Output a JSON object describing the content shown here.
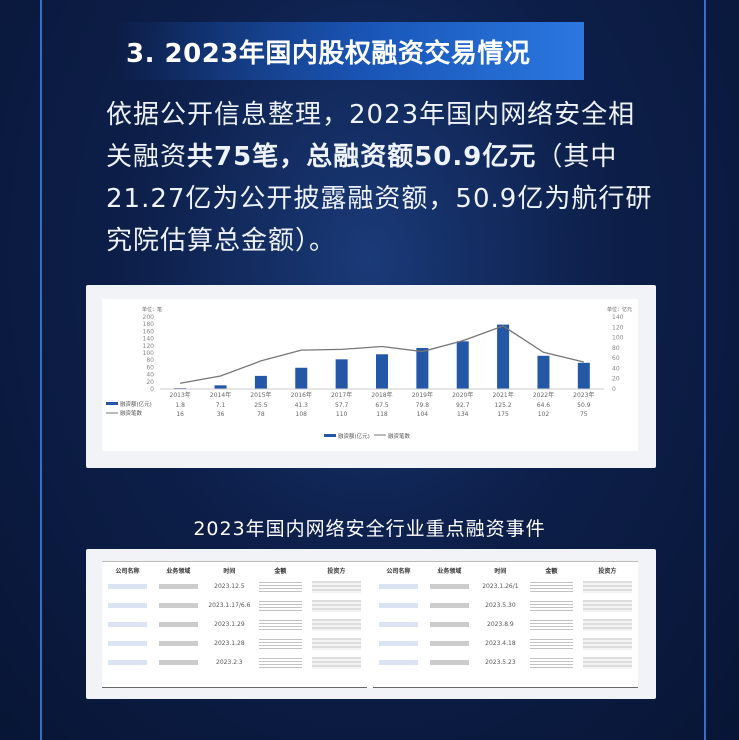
{
  "section_title": "3. 2023年国内股权融资交易情况",
  "paragraph": {
    "p1": "依据公开信息整理，2023年国内网络安全相关融资",
    "b1": "共75笔，总融资额50.9亿元",
    "p2": "（其中21.27亿为公开披露融资额，50.9亿为航行研究院估算总金额）。"
  },
  "chart_data": {
    "type": "bar",
    "categories": [
      "2013年",
      "2014年",
      "2015年",
      "2016年",
      "2017年",
      "2018年",
      "2019年",
      "2020年",
      "2021年",
      "2022年",
      "2023年"
    ],
    "series": [
      {
        "name": "融资额(亿元)",
        "type": "bar",
        "axis": "right",
        "values": [
          1.8,
          7.1,
          25.5,
          41.3,
          57.7,
          67.5,
          79.8,
          92.7,
          125.2,
          64.6,
          50.9
        ],
        "color": "#2557a7"
      },
      {
        "name": "融资笔数",
        "type": "line",
        "axis": "left",
        "values": [
          16,
          36,
          78,
          108,
          110,
          118,
          104,
          134,
          175,
          102,
          75
        ],
        "color": "#777777"
      }
    ],
    "left_axis": {
      "label": "单位：笔",
      "ylim": [
        0,
        200
      ],
      "ticks": [
        0,
        20,
        40,
        60,
        80,
        100,
        120,
        140,
        160,
        180,
        200
      ]
    },
    "right_axis": {
      "label": "单位：亿元",
      "ylim": [
        0,
        140
      ],
      "ticks": [
        0,
        20,
        40,
        60,
        80,
        100,
        120,
        140
      ]
    },
    "legend": [
      "融资额(亿元)",
      "融资笔数"
    ],
    "legend_position": "bottom",
    "grid": false
  },
  "table_title": "2023年国内网络安全行业重点融资事件",
  "table": {
    "headers": [
      "公司名称",
      "业务领域",
      "时间",
      "金额",
      "投资方"
    ],
    "left_dates": [
      "2023.12.5",
      "2023.1.17/6.6",
      "2023.1.29",
      "2023.1.28",
      "2023.2.3"
    ],
    "right_dates": [
      "2023.1.26/1",
      "2023.5.30",
      "2023.8.9",
      "2023.4.18",
      "2023.5.23"
    ]
  }
}
